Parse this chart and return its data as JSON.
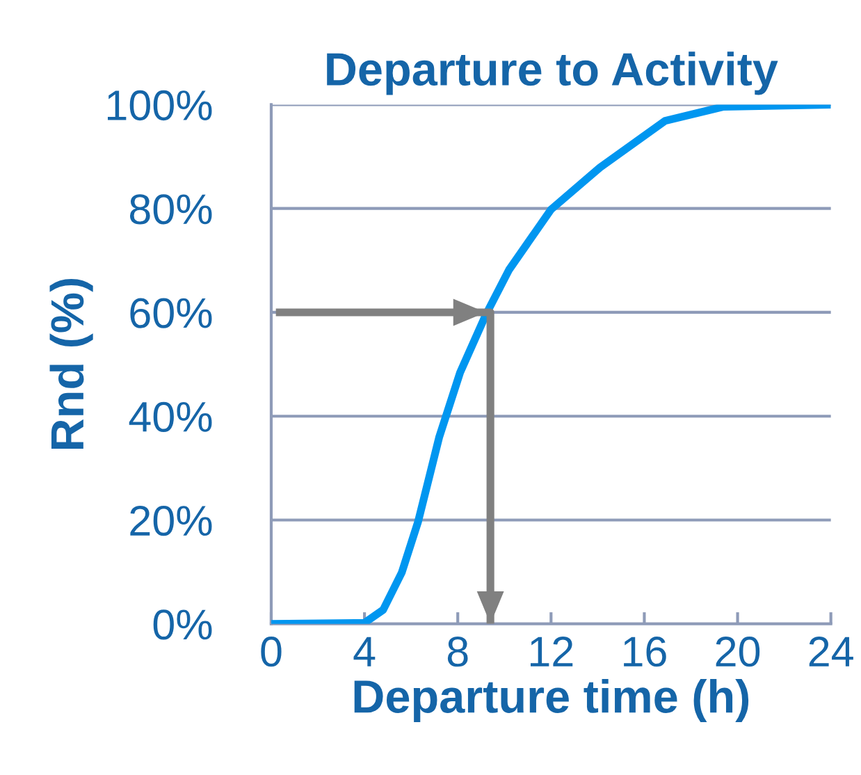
{
  "chart_data": {
    "type": "line",
    "title": "Departure to Activity",
    "xlabel": "Departure time (h)",
    "ylabel": "Rnd (%)",
    "xlim": [
      0,
      24
    ],
    "xticks": [
      0,
      4,
      8,
      12,
      16,
      20,
      24
    ],
    "ylim": [
      0,
      100
    ],
    "yticks": [
      {
        "value": 0,
        "label": "0%"
      },
      {
        "value": 20,
        "label": "20%"
      },
      {
        "value": 40,
        "label": "40%"
      },
      {
        "value": 60,
        "label": "60%"
      },
      {
        "value": 80,
        "label": "80%"
      },
      {
        "value": 100,
        "label": "100%"
      }
    ],
    "grid": "y",
    "marker": "none",
    "line_style": "solid",
    "series": [
      {
        "color": "#0096f0",
        "x": [
          0,
          4,
          4.8,
          5.6,
          6.3,
          7.2,
          8.1,
          9.2,
          10.2,
          12,
          14.1,
          16.9,
          19.4,
          24
        ],
        "values": [
          0,
          0.2,
          2.7,
          9.9,
          19.7,
          35.9,
          48.4,
          59.5,
          68.2,
          79.8,
          87.9,
          96.9,
          99.6,
          100
        ]
      },
      {
        "color": "#808080",
        "x": [
          0.2,
          9.2,
          9.4,
          9.4
        ],
        "values": [
          60,
          60,
          60,
          0
        ]
      }
    ]
  }
}
